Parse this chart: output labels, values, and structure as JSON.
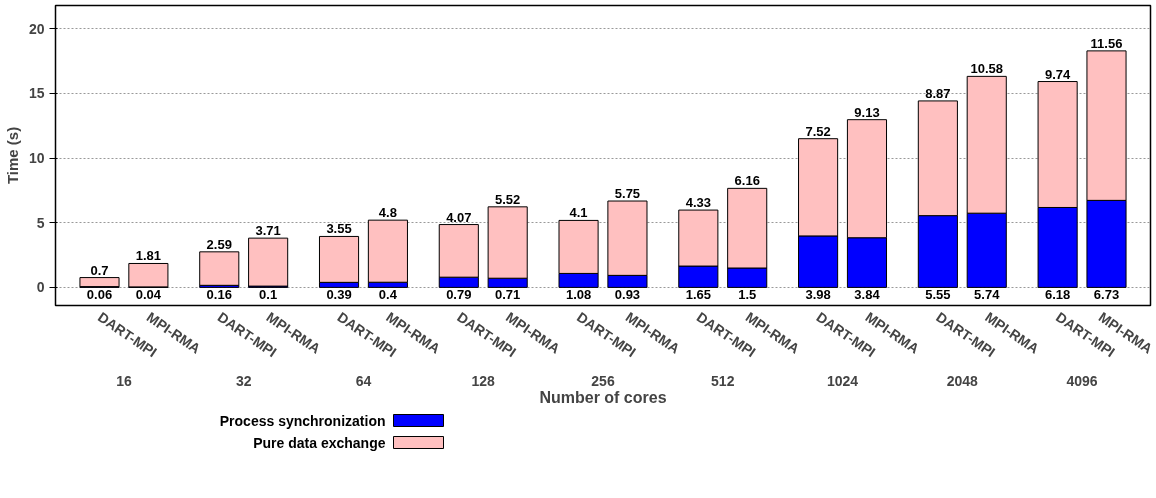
{
  "chart_data": {
    "type": "bar",
    "stacked": true,
    "categories": [
      "DART-MPI",
      "MPI-RMA",
      "DART-MPI",
      "MPI-RMA",
      "DART-MPI",
      "MPI-RMA",
      "DART-MPI",
      "MPI-RMA",
      "DART-MPI",
      "MPI-RMA",
      "DART-MPI",
      "MPI-RMA",
      "DART-MPI",
      "MPI-RMA",
      "DART-MPI",
      "MPI-RMA",
      "DART-MPI",
      "MPI-RMA"
    ],
    "annotations": [
      "16",
      "32",
      "64",
      "128",
      "256",
      "512",
      "1024",
      "2048",
      "4096"
    ],
    "xlabel": "Number of cores",
    "ylabel": "Time (s)",
    "series": [
      {
        "name": "Process synchronization",
        "color": "#0000ff",
        "values": [
          0.06,
          0.04,
          0.16,
          0.1,
          0.39,
          0.4,
          0.79,
          0.71,
          1.08,
          0.93,
          1.65,
          1.5,
          3.98,
          3.84,
          5.55,
          5.74,
          6.18,
          6.73
        ]
      },
      {
        "name": "Pure data exchange",
        "color": "#ffc0c0",
        "values": [
          0.7,
          1.81,
          2.59,
          3.71,
          3.55,
          4.8,
          4.07,
          5.52,
          4.1,
          5.75,
          4.33,
          6.16,
          7.52,
          9.13,
          8.87,
          10.58,
          9.74,
          11.56
        ]
      }
    ],
    "ylim": [
      -1.4,
      21.8
    ],
    "yticks": [
      0,
      5,
      10,
      15,
      20
    ],
    "grid": "y",
    "legend": "bottom left",
    "data_labels": true
  }
}
